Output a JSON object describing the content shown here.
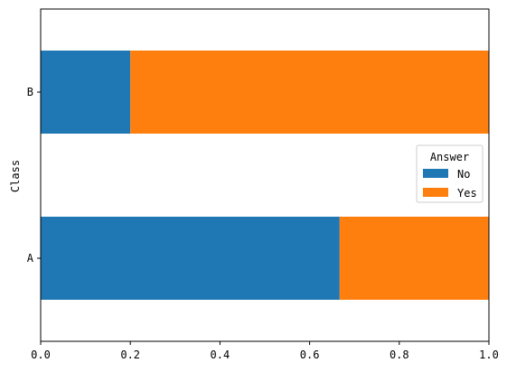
{
  "chart_data": {
    "type": "bar",
    "orientation": "horizontal",
    "stacked": true,
    "categories": [
      "A",
      "B"
    ],
    "series": [
      {
        "name": "No",
        "values": [
          0.667,
          0.2
        ],
        "color": "#1f77b4"
      },
      {
        "name": "Yes",
        "values": [
          0.333,
          0.8
        ],
        "color": "#ff7f0e"
      }
    ],
    "xlabel": "",
    "ylabel": "Class",
    "xlim": [
      0,
      1.0
    ],
    "xticks": [
      "0.0",
      "0.2",
      "0.4",
      "0.6",
      "0.8",
      "1.0"
    ],
    "grid": false,
    "legend": {
      "title": "Answer",
      "position": "center-right",
      "entries": [
        "No",
        "Yes"
      ]
    }
  }
}
